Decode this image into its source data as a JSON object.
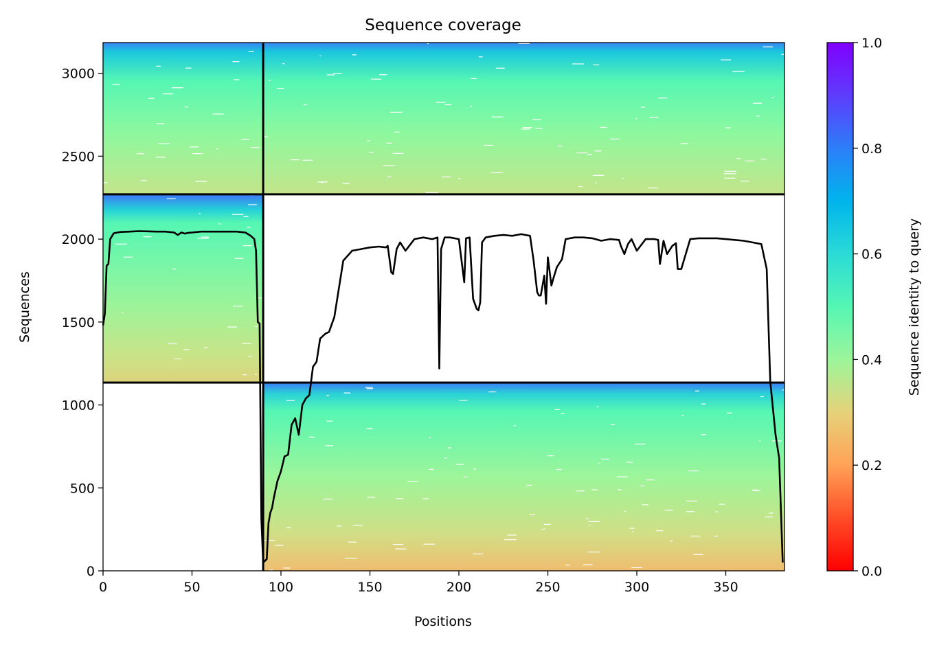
{
  "chart_data": {
    "type": "heatmap",
    "title": "Sequence coverage",
    "xlabel": "Positions",
    "ylabel": "Sequences",
    "xlim": [
      0,
      383
    ],
    "ylim": [
      0,
      3185
    ],
    "x_ticks": [
      0,
      50,
      100,
      150,
      200,
      250,
      300,
      350
    ],
    "y_ticks": [
      0,
      500,
      1000,
      1500,
      2000,
      2500,
      3000
    ],
    "colorbar": {
      "label": "Sequence identity to query",
      "range": [
        0.0,
        1.0
      ],
      "ticks": [
        "0.0",
        "0.2",
        "0.4",
        "0.6",
        "0.8",
        "1.0"
      ],
      "colormap": "rainbow_r"
    },
    "blocks": [
      {
        "x": [
          0,
          90
        ],
        "y": [
          2270,
          3185
        ],
        "filled": true,
        "identity_top": 0.82,
        "identity_bottom": 0.4
      },
      {
        "x": [
          90,
          383
        ],
        "y": [
          2270,
          3185
        ],
        "filled": true,
        "identity_top": 0.82,
        "identity_bottom": 0.4
      },
      {
        "x": [
          0,
          90
        ],
        "y": [
          1135,
          2270
        ],
        "filled": true,
        "identity_top": 0.84,
        "identity_bottom": 0.33
      },
      {
        "x": [
          90,
          383
        ],
        "y": [
          1135,
          2270
        ],
        "filled": false
      },
      {
        "x": [
          0,
          90
        ],
        "y": [
          0,
          1135
        ],
        "filled": false
      },
      {
        "x": [
          90,
          383
        ],
        "y": [
          0,
          1135
        ],
        "filled": true,
        "identity_top": 0.82,
        "identity_bottom": 0.3
      }
    ],
    "boundaries": {
      "x": [
        90
      ],
      "y": [
        1135,
        2270
      ]
    },
    "series": [
      {
        "type": "line",
        "color": "#000000",
        "x": [
          0,
          1,
          2,
          3,
          4,
          6,
          8,
          10,
          15,
          20,
          25,
          30,
          35,
          40,
          42,
          44,
          46,
          48,
          50,
          55,
          60,
          65,
          70,
          75,
          80,
          83,
          85,
          86,
          87,
          88,
          89,
          90,
          91,
          92,
          93,
          94,
          95,
          96,
          98,
          100,
          102,
          104,
          106,
          108,
          110,
          112,
          114,
          116,
          118,
          120,
          122,
          124,
          125,
          127,
          130,
          135,
          140,
          145,
          150,
          155,
          159,
          160,
          162,
          163,
          165,
          167,
          170,
          175,
          180,
          185,
          188,
          189,
          190,
          192,
          195,
          200,
          203,
          204,
          206,
          208,
          210,
          211,
          212,
          213,
          215,
          220,
          225,
          230,
          235,
          240,
          242,
          244,
          245,
          246,
          248,
          249,
          250,
          252,
          253,
          255,
          258,
          260,
          265,
          270,
          275,
          280,
          285,
          290,
          291,
          293,
          295,
          297,
          300,
          305,
          310,
          312,
          313,
          315,
          317,
          320,
          322,
          323,
          325,
          330,
          335,
          340,
          345,
          350,
          355,
          360,
          365,
          370,
          373,
          375,
          378,
          380,
          382
        ],
        "y": [
          1480,
          1550,
          1840,
          1850,
          2000,
          2035,
          2040,
          2043,
          2045,
          2048,
          2047,
          2045,
          2045,
          2040,
          2025,
          2040,
          2033,
          2038,
          2040,
          2045,
          2045,
          2045,
          2045,
          2045,
          2040,
          2020,
          2000,
          1930,
          1500,
          1490,
          310,
          50,
          60,
          70,
          290,
          350,
          380,
          440,
          540,
          600,
          690,
          700,
          880,
          920,
          820,
          1000,
          1040,
          1060,
          1230,
          1260,
          1400,
          1420,
          1430,
          1440,
          1530,
          1870,
          1930,
          1940,
          1950,
          1955,
          1950,
          1960,
          1800,
          1790,
          1940,
          1980,
          1930,
          2000,
          2010,
          2000,
          2010,
          1220,
          1940,
          2010,
          2010,
          2000,
          1740,
          2005,
          2010,
          1640,
          1580,
          1570,
          1620,
          1980,
          2010,
          2020,
          2025,
          2020,
          2030,
          2020,
          1870,
          1680,
          1660,
          1660,
          1780,
          1610,
          1890,
          1720,
          1760,
          1830,
          1880,
          2000,
          2010,
          2010,
          2005,
          1990,
          2000,
          1995,
          1960,
          1910,
          1970,
          2000,
          1930,
          2000,
          2000,
          1995,
          1850,
          1990,
          1910,
          1960,
          1975,
          1820,
          1820,
          2000,
          2005,
          2005,
          2005,
          2000,
          1995,
          1990,
          1980,
          1970,
          1820,
          1140,
          820,
          680,
          50
        ]
      }
    ]
  }
}
